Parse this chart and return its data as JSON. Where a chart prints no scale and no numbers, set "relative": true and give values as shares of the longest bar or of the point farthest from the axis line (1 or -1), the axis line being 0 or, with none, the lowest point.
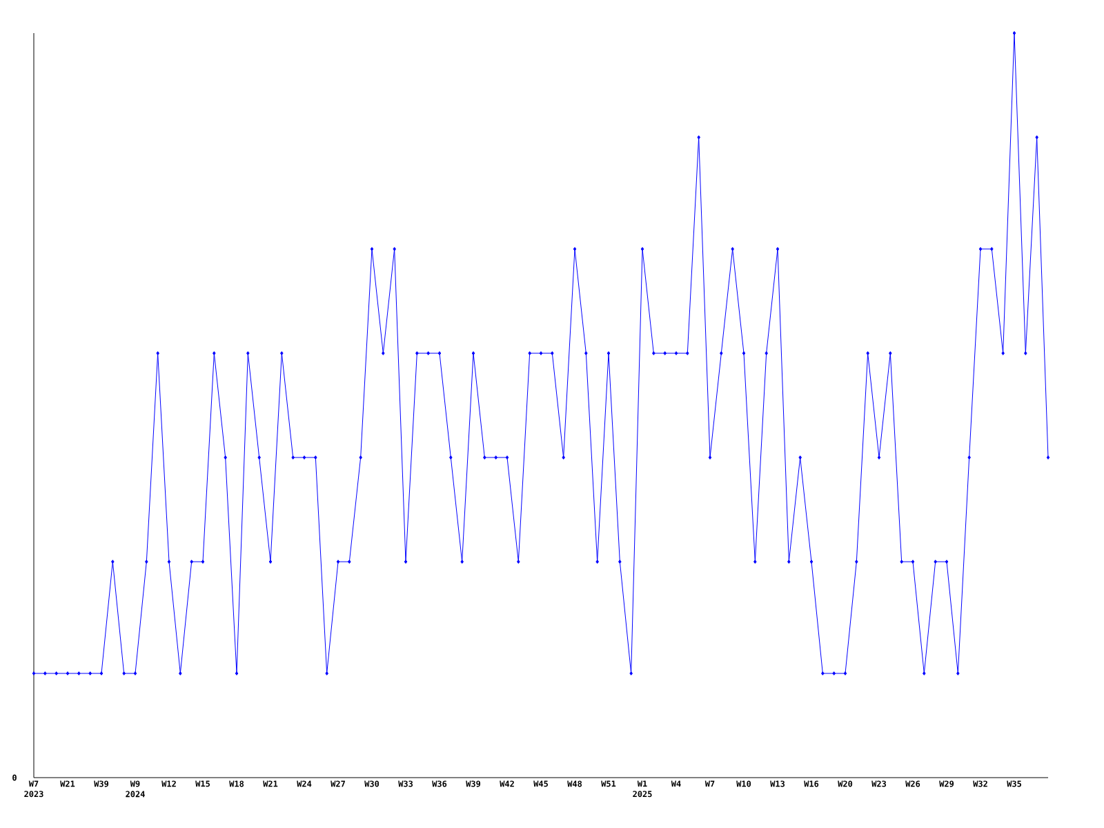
{
  "chart_data": {
    "type": "line",
    "relative": true,
    "marker": "diamond",
    "color": "#0000ff",
    "categories": [
      "W7 2023",
      null,
      null,
      "W21",
      null,
      null,
      "W39",
      null,
      null,
      "W9 2024",
      null,
      null,
      "W12",
      null,
      null,
      "W15",
      null,
      null,
      "W18",
      null,
      null,
      "W21",
      null,
      null,
      "W24",
      null,
      null,
      "W27",
      null,
      null,
      "W30",
      null,
      null,
      "W33",
      null,
      null,
      "W36",
      null,
      null,
      "W39",
      null,
      null,
      "W42",
      null,
      null,
      "W45",
      null,
      null,
      "W48",
      null,
      null,
      "W51",
      null,
      null,
      "W1 2025",
      null,
      null,
      "W4",
      null,
      null,
      "W7",
      null,
      null,
      "W10",
      null,
      null,
      "W13",
      null,
      null,
      "W16",
      null,
      null,
      "W20",
      null,
      null,
      "W23",
      null,
      null,
      "W26",
      null,
      null,
      "W29",
      null,
      null,
      "W32",
      null,
      null,
      "W35",
      null,
      null,
      null
    ],
    "values": [
      0.14,
      0.14,
      0.14,
      0.14,
      0.14,
      0.14,
      0.14,
      0.29,
      0.14,
      0.14,
      0.29,
      0.57,
      0.29,
      0.14,
      0.29,
      0.29,
      0.57,
      0.43,
      0.14,
      0.57,
      0.43,
      0.29,
      0.57,
      0.43,
      0.43,
      0.43,
      0.14,
      0.29,
      0.29,
      0.43,
      0.71,
      0.57,
      0.71,
      0.29,
      0.57,
      0.57,
      0.57,
      0.43,
      0.29,
      0.57,
      0.43,
      0.43,
      0.43,
      0.29,
      0.57,
      0.57,
      0.57,
      0.43,
      0.71,
      0.57,
      0.29,
      0.57,
      0.29,
      0.14,
      0.71,
      0.57,
      0.57,
      0.57,
      0.57,
      0.86,
      0.43,
      0.57,
      0.71,
      0.57,
      0.29,
      0.57,
      0.71,
      0.29,
      0.43,
      0.29,
      0.14,
      0.14,
      0.14,
      0.29,
      0.57,
      0.43,
      0.57,
      0.29,
      0.29,
      0.14,
      0.29,
      0.29,
      0.14,
      0.43,
      0.71,
      0.71,
      0.57,
      1,
      0.57,
      0.86,
      0.43
    ],
    "annotations": [
      "0"
    ]
  }
}
